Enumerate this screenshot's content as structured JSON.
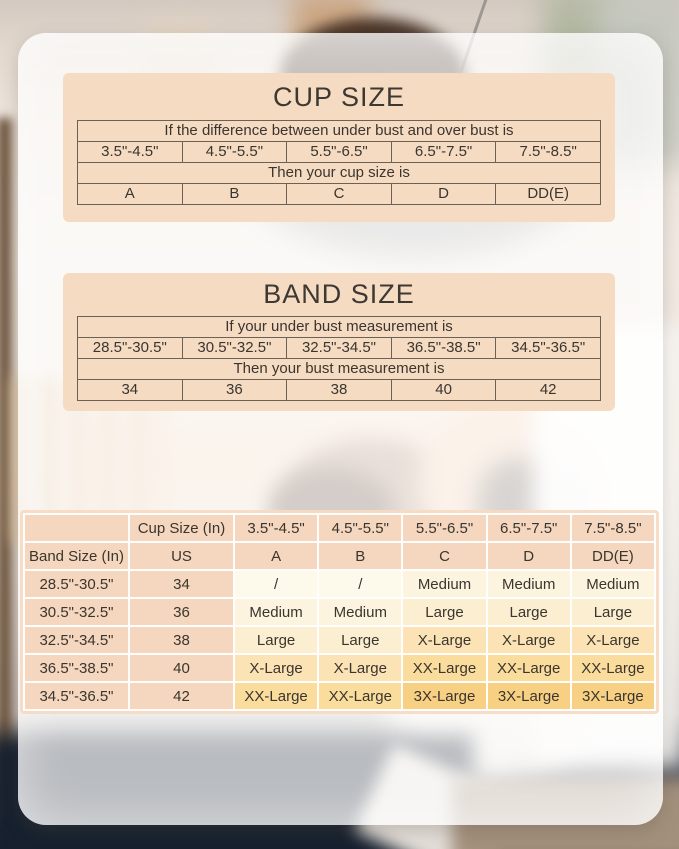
{
  "cup_size_panel": {
    "title": "CUP SIZE",
    "header": "If the difference between under bust and over bust is",
    "ranges": [
      "3.5\"-4.5\"",
      "4.5\"-5.5\"",
      "5.5\"-6.5\"",
      "6.5\"-7.5\"",
      "7.5\"-8.5\""
    ],
    "subheader": "Then your cup size is",
    "cups": [
      "A",
      "B",
      "C",
      "D",
      "DD(E)"
    ]
  },
  "band_size_panel": {
    "title": "BAND SIZE",
    "header": "If your under bust measurement is",
    "ranges": [
      "28.5\"-30.5\"",
      "30.5\"-32.5\"",
      "32.5\"-34.5\"",
      "36.5\"-38.5\"",
      "34.5\"-36.5\""
    ],
    "subheader": "Then your bust measurement is",
    "bands": [
      "34",
      "36",
      "38",
      "40",
      "42"
    ]
  },
  "size_chart": {
    "corner_label": "",
    "cup_size_header": "Cup Size (In)",
    "band_size_header": "Band Size (In)",
    "us_label": "US",
    "cup_ranges": [
      "3.5\"-4.5\"",
      "4.5\"-5.5\"",
      "5.5\"-6.5\"",
      "6.5\"-7.5\"",
      "7.5\"-8.5\""
    ],
    "cup_letters": [
      "A",
      "B",
      "C",
      "D",
      "DD(E)"
    ],
    "rows": [
      {
        "band": "28.5\"-30.5\"",
        "us": "34",
        "sizes": [
          "/",
          "/",
          "Medium",
          "Medium",
          "Medium"
        ]
      },
      {
        "band": "30.5\"-32.5\"",
        "us": "36",
        "sizes": [
          "Medium",
          "Medium",
          "Large",
          "Large",
          "Large"
        ]
      },
      {
        "band": "32.5\"-34.5\"",
        "us": "38",
        "sizes": [
          "Large",
          "Large",
          "X-Large",
          "X-Large",
          "X-Large"
        ]
      },
      {
        "band": "36.5\"-38.5\"",
        "us": "40",
        "sizes": [
          "X-Large",
          "X-Large",
          "XX-Large",
          "XX-Large",
          "XX-Large"
        ]
      },
      {
        "band": "34.5\"-36.5\"",
        "us": "42",
        "sizes": [
          "XX-Large",
          "XX-Large",
          "3X-Large",
          "3X-Large",
          "3X-Large"
        ]
      }
    ],
    "size_colors": {
      "/": "#fdf9eb",
      "Medium": "#fdf4e0",
      "Large": "#fceed0",
      "X-Large": "#fbe3b6",
      "XX-Large": "#fadd9d",
      "3X-Large": "#f7d083"
    }
  },
  "colors": {
    "panel_background": "#f6dbc3",
    "panel_table_line": "#6b6255",
    "chart_header_cell": "#f5d7bf",
    "chart_grid_line": "#ffffff",
    "text": "#3a352e"
  }
}
